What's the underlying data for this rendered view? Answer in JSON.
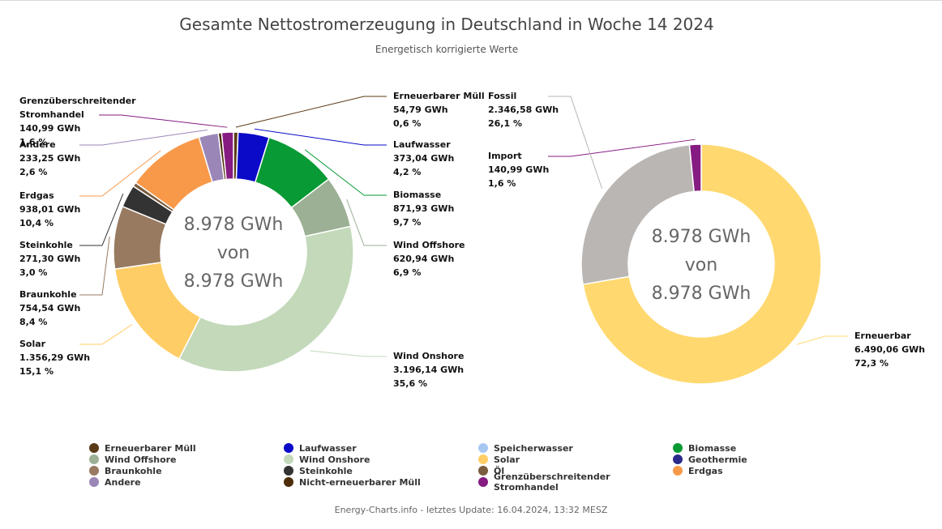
{
  "title": "Gesamte Nettostromerzeugung in Deutschland in Woche 14 2024",
  "subtitle": "Energetisch korrigierte Werte",
  "footer": "Energy-Charts.info - letztes Update: 16.04.2024, 13:32 MESZ",
  "chart_data": [
    {
      "type": "pie",
      "donut": true,
      "center_text": [
        "8.978 GWh",
        "von",
        "8.978 GWh"
      ],
      "slices": [
        {
          "name": "Erneuerbarer Müll",
          "value": 54.79,
          "value_label": "54,79 GWh",
          "percent_label": "0,6 %",
          "color": "#5a3a16",
          "side": "right"
        },
        {
          "name": "Laufwasser",
          "value": 373.04,
          "value_label": "373,04 GWh",
          "percent_label": "4,2 %",
          "color": "#0a0ac8",
          "side": "right"
        },
        {
          "name": "Biomasse",
          "value": 871.93,
          "value_label": "871,93 GWh",
          "percent_label": "9,7 %",
          "color": "#089a34",
          "side": "right"
        },
        {
          "name": "Wind Offshore",
          "value": 620.94,
          "value_label": "620,94 GWh",
          "percent_label": "6,9 %",
          "color": "#9bb094",
          "side": "right"
        },
        {
          "name": "Wind Onshore",
          "value": 3196.14,
          "value_label": "3.196,14 GWh",
          "percent_label": "35,6 %",
          "color": "#c3d9ba",
          "side": "right"
        },
        {
          "name": "Solar",
          "value": 1356.29,
          "value_label": "1.356,29 GWh",
          "percent_label": "15,1 %",
          "color": "#ffcd66",
          "side": "left"
        },
        {
          "name": "Braunkohle",
          "value": 754.54,
          "value_label": "754,54 GWh",
          "percent_label": "8,4 %",
          "color": "#987a60",
          "side": "left"
        },
        {
          "name": "Steinkohle",
          "value": 271.3,
          "value_label": "271,30 GWh",
          "percent_label": "3,0 %",
          "color": "#333333",
          "side": "left"
        },
        {
          "name": "Öl",
          "value": 50.0,
          "value_label": "",
          "percent_label": "",
          "color": "#7a5c3e",
          "side": "none"
        },
        {
          "name": "Erdgas",
          "value": 938.01,
          "value_label": "938,01 GWh",
          "percent_label": "10,4 %",
          "color": "#f8994a",
          "side": "left"
        },
        {
          "name": "Andere",
          "value": 233.25,
          "value_label": "233,25 GWh",
          "percent_label": "2,6 %",
          "color": "#9b86b8",
          "side": "left"
        },
        {
          "name": "Nicht-erneuerbarer Müll",
          "value": 40.0,
          "value_label": "",
          "percent_label": "",
          "color": "#4d2e08",
          "side": "none"
        },
        {
          "name": "Grenzüberschreitender Stromhandel",
          "label_lines": [
            "Grenzüberschreitender",
            "Stromhandel"
          ],
          "value": 140.99,
          "value_label": "140,99 GWh",
          "percent_label": "1,6 %",
          "color": "#861b82",
          "side": "left"
        }
      ]
    },
    {
      "type": "pie",
      "donut": true,
      "center_text": [
        "8.978 GWh",
        "von",
        "8.978 GWh"
      ],
      "slices": [
        {
          "name": "Erneuerbar",
          "value": 6490.06,
          "value_label": "6.490,06 GWh",
          "percent_label": "72,3 %",
          "color": "#ffd970",
          "side": "right"
        },
        {
          "name": "Fossil",
          "value": 2346.58,
          "value_label": "2.346,58 GWh",
          "percent_label": "26,1 %",
          "color": "#bab6b3",
          "side": "left"
        },
        {
          "name": "Import",
          "value": 140.99,
          "value_label": "140,99 GWh",
          "percent_label": "1,6 %",
          "color": "#861b82",
          "side": "left"
        }
      ]
    }
  ],
  "legend": [
    {
      "label": "Erneuerbarer Müll",
      "color": "#5a3a16"
    },
    {
      "label": "Laufwasser",
      "color": "#0a0ac8"
    },
    {
      "label": "Speicherwasser",
      "color": "#a8c8f4"
    },
    {
      "label": "Biomasse",
      "color": "#089a34"
    },
    {
      "label": "Wind Offshore",
      "color": "#9bb094"
    },
    {
      "label": "Wind Onshore",
      "color": "#c3d9ba"
    },
    {
      "label": "Solar",
      "color": "#ffcd66"
    },
    {
      "label": "Geothermie",
      "color": "#2a2a8c"
    },
    {
      "label": "Braunkohle",
      "color": "#987a60"
    },
    {
      "label": "Steinkohle",
      "color": "#333333"
    },
    {
      "label": "Öl",
      "color": "#7a5c3e"
    },
    {
      "label": "Erdgas",
      "color": "#f8994a"
    },
    {
      "label": "Andere",
      "color": "#9b86b8"
    },
    {
      "label": "Nicht-erneuerbarer Müll",
      "color": "#4d2e08"
    },
    {
      "label": "Grenzüberschreitender Stromhandel",
      "color": "#861b82"
    }
  ]
}
